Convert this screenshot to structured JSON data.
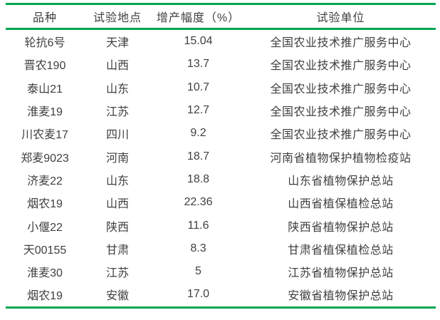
{
  "colors": {
    "rule_green": "#00a650",
    "text": "#3f3f3f"
  },
  "table": {
    "columns": [
      "品种",
      "试验地点",
      "增产幅度（%）",
      "试验单位"
    ],
    "rows": [
      [
        "轮抗6号",
        "天津",
        "15.04",
        "全国农业技术推广服务中心"
      ],
      [
        "晋农190",
        "山西",
        "13.7",
        "全国农业技术推广服务中心"
      ],
      [
        "泰山21",
        "山东",
        "10.7",
        "全国农业技术推广服务中心"
      ],
      [
        "淮麦19",
        "江苏",
        "12.7",
        "全国农业技术推广服务中心"
      ],
      [
        "川农麦17",
        "四川",
        "9.2",
        "全国农业技术推广服务中心"
      ],
      [
        "郑麦9023",
        "河南",
        "18.7",
        "河南省植物保护植物检疫站"
      ],
      [
        "济麦22",
        "山东",
        "18.8",
        "山东省植物保护总站"
      ],
      [
        "烟农19",
        "山西",
        "22.36",
        "山西省植保植检总站"
      ],
      [
        "小偃22",
        "陕西",
        "11.6",
        "陕西省植物保护总站"
      ],
      [
        "天00155",
        "甘肃",
        "8.3",
        "甘肃省植保植检总站"
      ],
      [
        "淮麦30",
        "江苏",
        "5",
        "江苏省植物保护总站"
      ],
      [
        "烟农19",
        "安徽",
        "17.0",
        "安徽省植物保护总站"
      ]
    ]
  }
}
